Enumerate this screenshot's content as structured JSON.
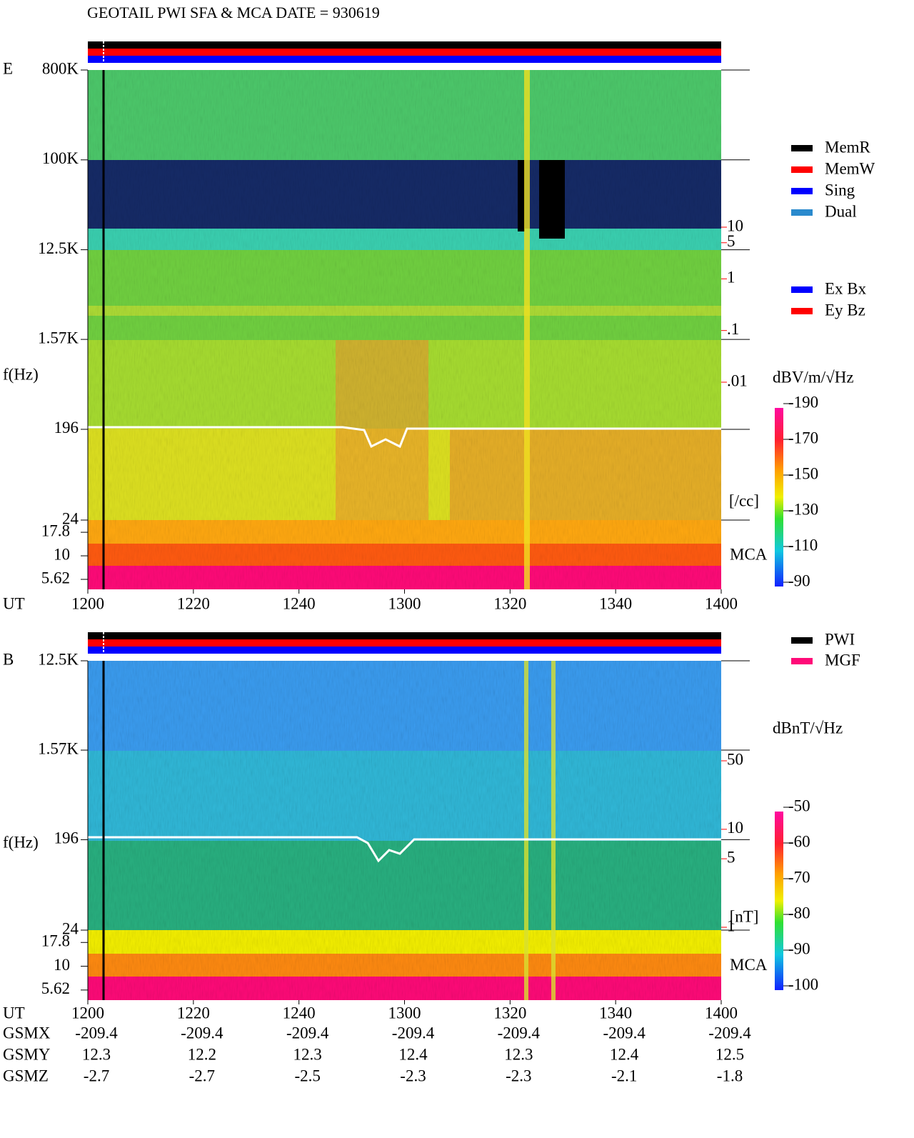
{
  "title": "GEOTAIL  PWI SFA & MCA   DATE = 930619",
  "chart_data": [
    {
      "type": "spectrogram",
      "panel_label": "E",
      "x_label": "UT",
      "y_label": "f(Hz)",
      "xticks": [
        "1200",
        "1220",
        "1240",
        "1300",
        "1320",
        "1340",
        "1400"
      ],
      "yscale": "log",
      "ylim": [
        24,
        800000
      ],
      "yticks": [
        {
          "value": 800000,
          "label": "800K"
        },
        {
          "value": 100000,
          "label": "100K"
        },
        {
          "value": 12500,
          "label": "12.5K"
        },
        {
          "value": 1570,
          "label": "1.57K"
        },
        196,
        24
      ],
      "mca_label": "MCA",
      "mca_ylim": [
        4.4,
        24
      ],
      "mca_ticks": [
        17.8,
        10,
        5.62
      ],
      "density_label": "[/cc]",
      "density_lim": [
        0.01,
        10
      ],
      "density_ticks": [
        10,
        5,
        1,
        {
          "value": 0.1,
          "label": ".1"
        },
        {
          "value": 0.01,
          "label": ".01"
        }
      ],
      "colorbar_label": "dBV/m/√Hz",
      "clim": [
        -190,
        -90
      ],
      "cticks": [
        -90,
        -110,
        -130,
        -150,
        -170,
        -190
      ],
      "legend": [
        {
          "name": "MemR",
          "color": "#000000"
        },
        {
          "name": "MemW",
          "color": "#ff0000"
        },
        {
          "name": "Sing",
          "color": "#0000ff"
        },
        {
          "name": "Dual",
          "color": "#2a8acd"
        }
      ],
      "legend2": [
        {
          "name": "Ex Bx",
          "color": "#0000ff"
        },
        {
          "name": "Ey Bz",
          "color": "#ff0000"
        }
      ]
    },
    {
      "type": "spectrogram",
      "panel_label": "B",
      "x_label": "UT",
      "y_label": "f(Hz)",
      "xticks": [
        "1200",
        "1220",
        "1240",
        "1300",
        "1320",
        "1340",
        "1400"
      ],
      "yscale": "log",
      "ylim": [
        24,
        12500
      ],
      "yticks": [
        {
          "value": 12500,
          "label": "12.5K"
        },
        {
          "value": 1570,
          "label": "1.57K"
        },
        196,
        24
      ],
      "mca_label": "MCA",
      "mca_ylim": [
        4.4,
        24
      ],
      "mca_ticks": [
        17.8,
        10,
        5.62
      ],
      "density_label": "[nT]",
      "density_lim": [
        1,
        50
      ],
      "density_ticks": [
        50,
        10,
        5,
        1
      ],
      "colorbar_label": "dBnT/√Hz",
      "clim": [
        -100,
        -50
      ],
      "cticks": [
        -50,
        -60,
        -70,
        -80,
        -90,
        -100
      ],
      "legend": [
        {
          "name": "PWI",
          "color": "#000000"
        },
        {
          "name": "MGF",
          "color": "#ff0a78"
        }
      ]
    }
  ],
  "orbit": {
    "labels": [
      "GSMX",
      "GSMY",
      "GSMZ"
    ],
    "rows": [
      [
        -209.4,
        -209.4,
        -209.4,
        -209.4,
        -209.4,
        -209.4,
        -209.4
      ],
      [
        12.3,
        12.2,
        12.3,
        12.4,
        12.3,
        12.4,
        12.5
      ],
      [
        -2.7,
        -2.7,
        -2.5,
        -2.3,
        -2.3,
        -2.1,
        -1.8
      ]
    ]
  }
}
